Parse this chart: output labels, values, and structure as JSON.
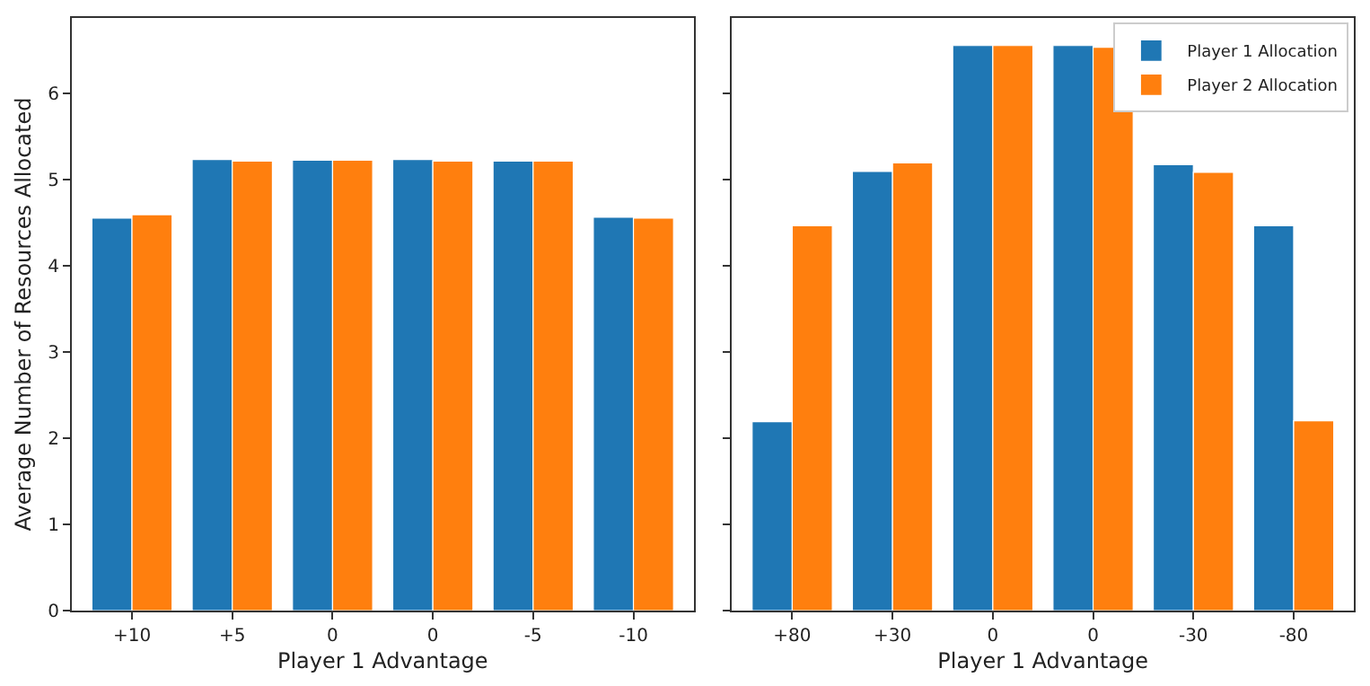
{
  "chart_data": [
    {
      "type": "bar",
      "xlabel": "Player 1 Advantage",
      "ylabel": "Average Number of Resources Allocated",
      "categories": [
        "+10",
        "+5",
        "0",
        "0",
        "-5",
        "-10"
      ],
      "ylim": [
        0,
        6.87
      ],
      "yticks": [
        0,
        1,
        2,
        3,
        4,
        5,
        6
      ],
      "legend": false,
      "series": [
        {
          "color": "#1f77b4",
          "values": [
            4.55,
            5.23,
            5.22,
            5.23,
            5.21,
            4.56
          ]
        },
        {
          "color": "#ff7f0e",
          "values": [
            4.59,
            5.21,
            5.22,
            5.21,
            5.21,
            4.55
          ]
        }
      ]
    },
    {
      "type": "bar",
      "xlabel": "Player 1 Advantage",
      "categories": [
        "+80",
        "+30",
        "0",
        "0",
        "-30",
        "-80"
      ],
      "ylim": [
        0,
        6.87
      ],
      "yticks": [
        0,
        1,
        2,
        3,
        4,
        5,
        6
      ],
      "tick_labels": "x",
      "legend": "top right",
      "series": [
        {
          "name": "Player 1 Allocation",
          "color": "#1f77b4",
          "values": [
            2.19,
            5.09,
            6.55,
            6.55,
            5.17,
            4.46
          ]
        },
        {
          "name": "Player 2 Allocation",
          "color": "#ff7f0e",
          "values": [
            4.46,
            5.19,
            6.55,
            6.53,
            5.08,
            2.2
          ]
        }
      ]
    }
  ]
}
